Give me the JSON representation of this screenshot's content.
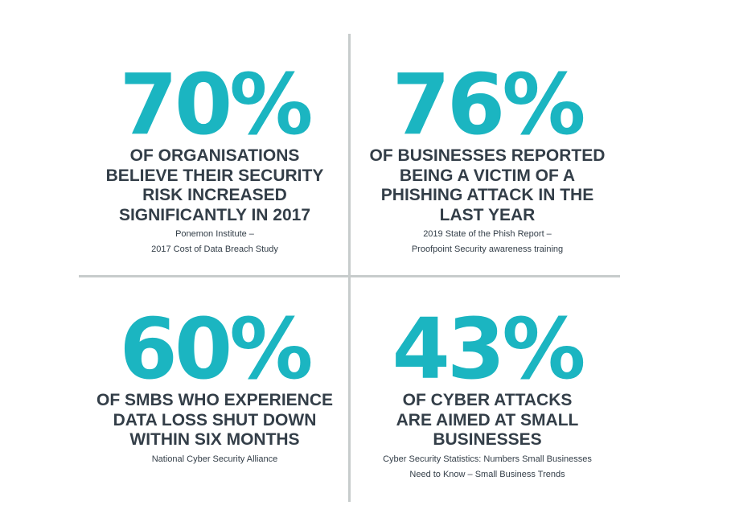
{
  "colors": {
    "accent": "#1bb5c1",
    "text": "#333e48",
    "divider": "#c7cccc",
    "background": "#ffffff"
  },
  "stats": [
    {
      "value": "70%",
      "description": "OF ORGANISATIONS\nBELIEVE THEIR SECURITY\nRISK INCREASED\nSIGNIFICANTLY IN 2017",
      "source": "Ponemon Institute –\n2017 Cost of Data Breach Study"
    },
    {
      "value": "76%",
      "description": "OF BUSINESSES REPORTED\nBEING A VICTIM OF A\nPHISHING ATTACK IN THE\nLAST YEAR",
      "source": "2019 State of the Phish Report –\nProofpoint Security awareness training"
    },
    {
      "value": "60%",
      "description": "OF SMBS WHO EXPERIENCE\nDATA LOSS SHUT DOWN\nWITHIN SIX MONTHS",
      "source": "National Cyber Security Alliance"
    },
    {
      "value": "43%",
      "description": "OF CYBER ATTACKS\nARE AIMED AT SMALL\nBUSINESSES",
      "source": "Cyber Security Statistics: Numbers Small Businesses\nNeed to Know – Small Business Trends"
    }
  ]
}
